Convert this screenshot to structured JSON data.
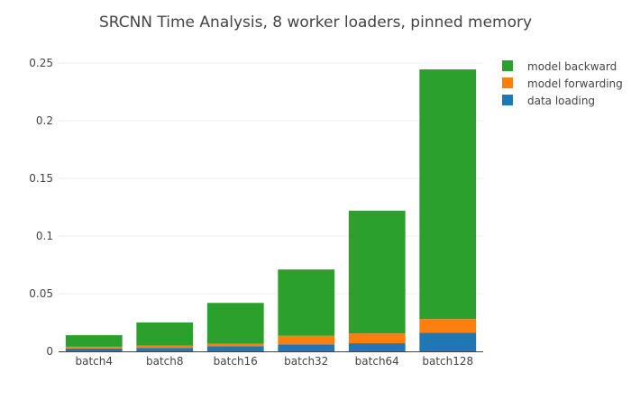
{
  "chart_data": {
    "type": "bar",
    "stacked": true,
    "title": "SRCNN Time Analysis, 8 worker loaders, pinned memory",
    "xlabel": "",
    "ylabel": "",
    "categories": [
      "batch4",
      "batch8",
      "batch16",
      "batch32",
      "batch64",
      "batch128"
    ],
    "ylim": [
      0,
      0.25
    ],
    "yticks": [
      0,
      0.05,
      0.1,
      0.15,
      0.2,
      0.25
    ],
    "ytick_labels": [
      "0",
      "0.05",
      "0.1",
      "0.15",
      "0.2",
      "0.25"
    ],
    "grid": true,
    "legend_position": "top-right",
    "series": [
      {
        "name": "data loading",
        "color": "#1f77b4",
        "values": [
          0.0025,
          0.003,
          0.0045,
          0.006,
          0.007,
          0.016
        ]
      },
      {
        "name": "model forwarding",
        "color": "#ff7f0e",
        "values": [
          0.0015,
          0.002,
          0.002,
          0.0075,
          0.0085,
          0.012
        ]
      },
      {
        "name": "model backward",
        "color": "#2ca02c",
        "values": [
          0.01,
          0.02,
          0.0355,
          0.0575,
          0.1065,
          0.2165
        ]
      }
    ],
    "legend_order": [
      "model backward",
      "model forwarding",
      "data loading"
    ]
  }
}
